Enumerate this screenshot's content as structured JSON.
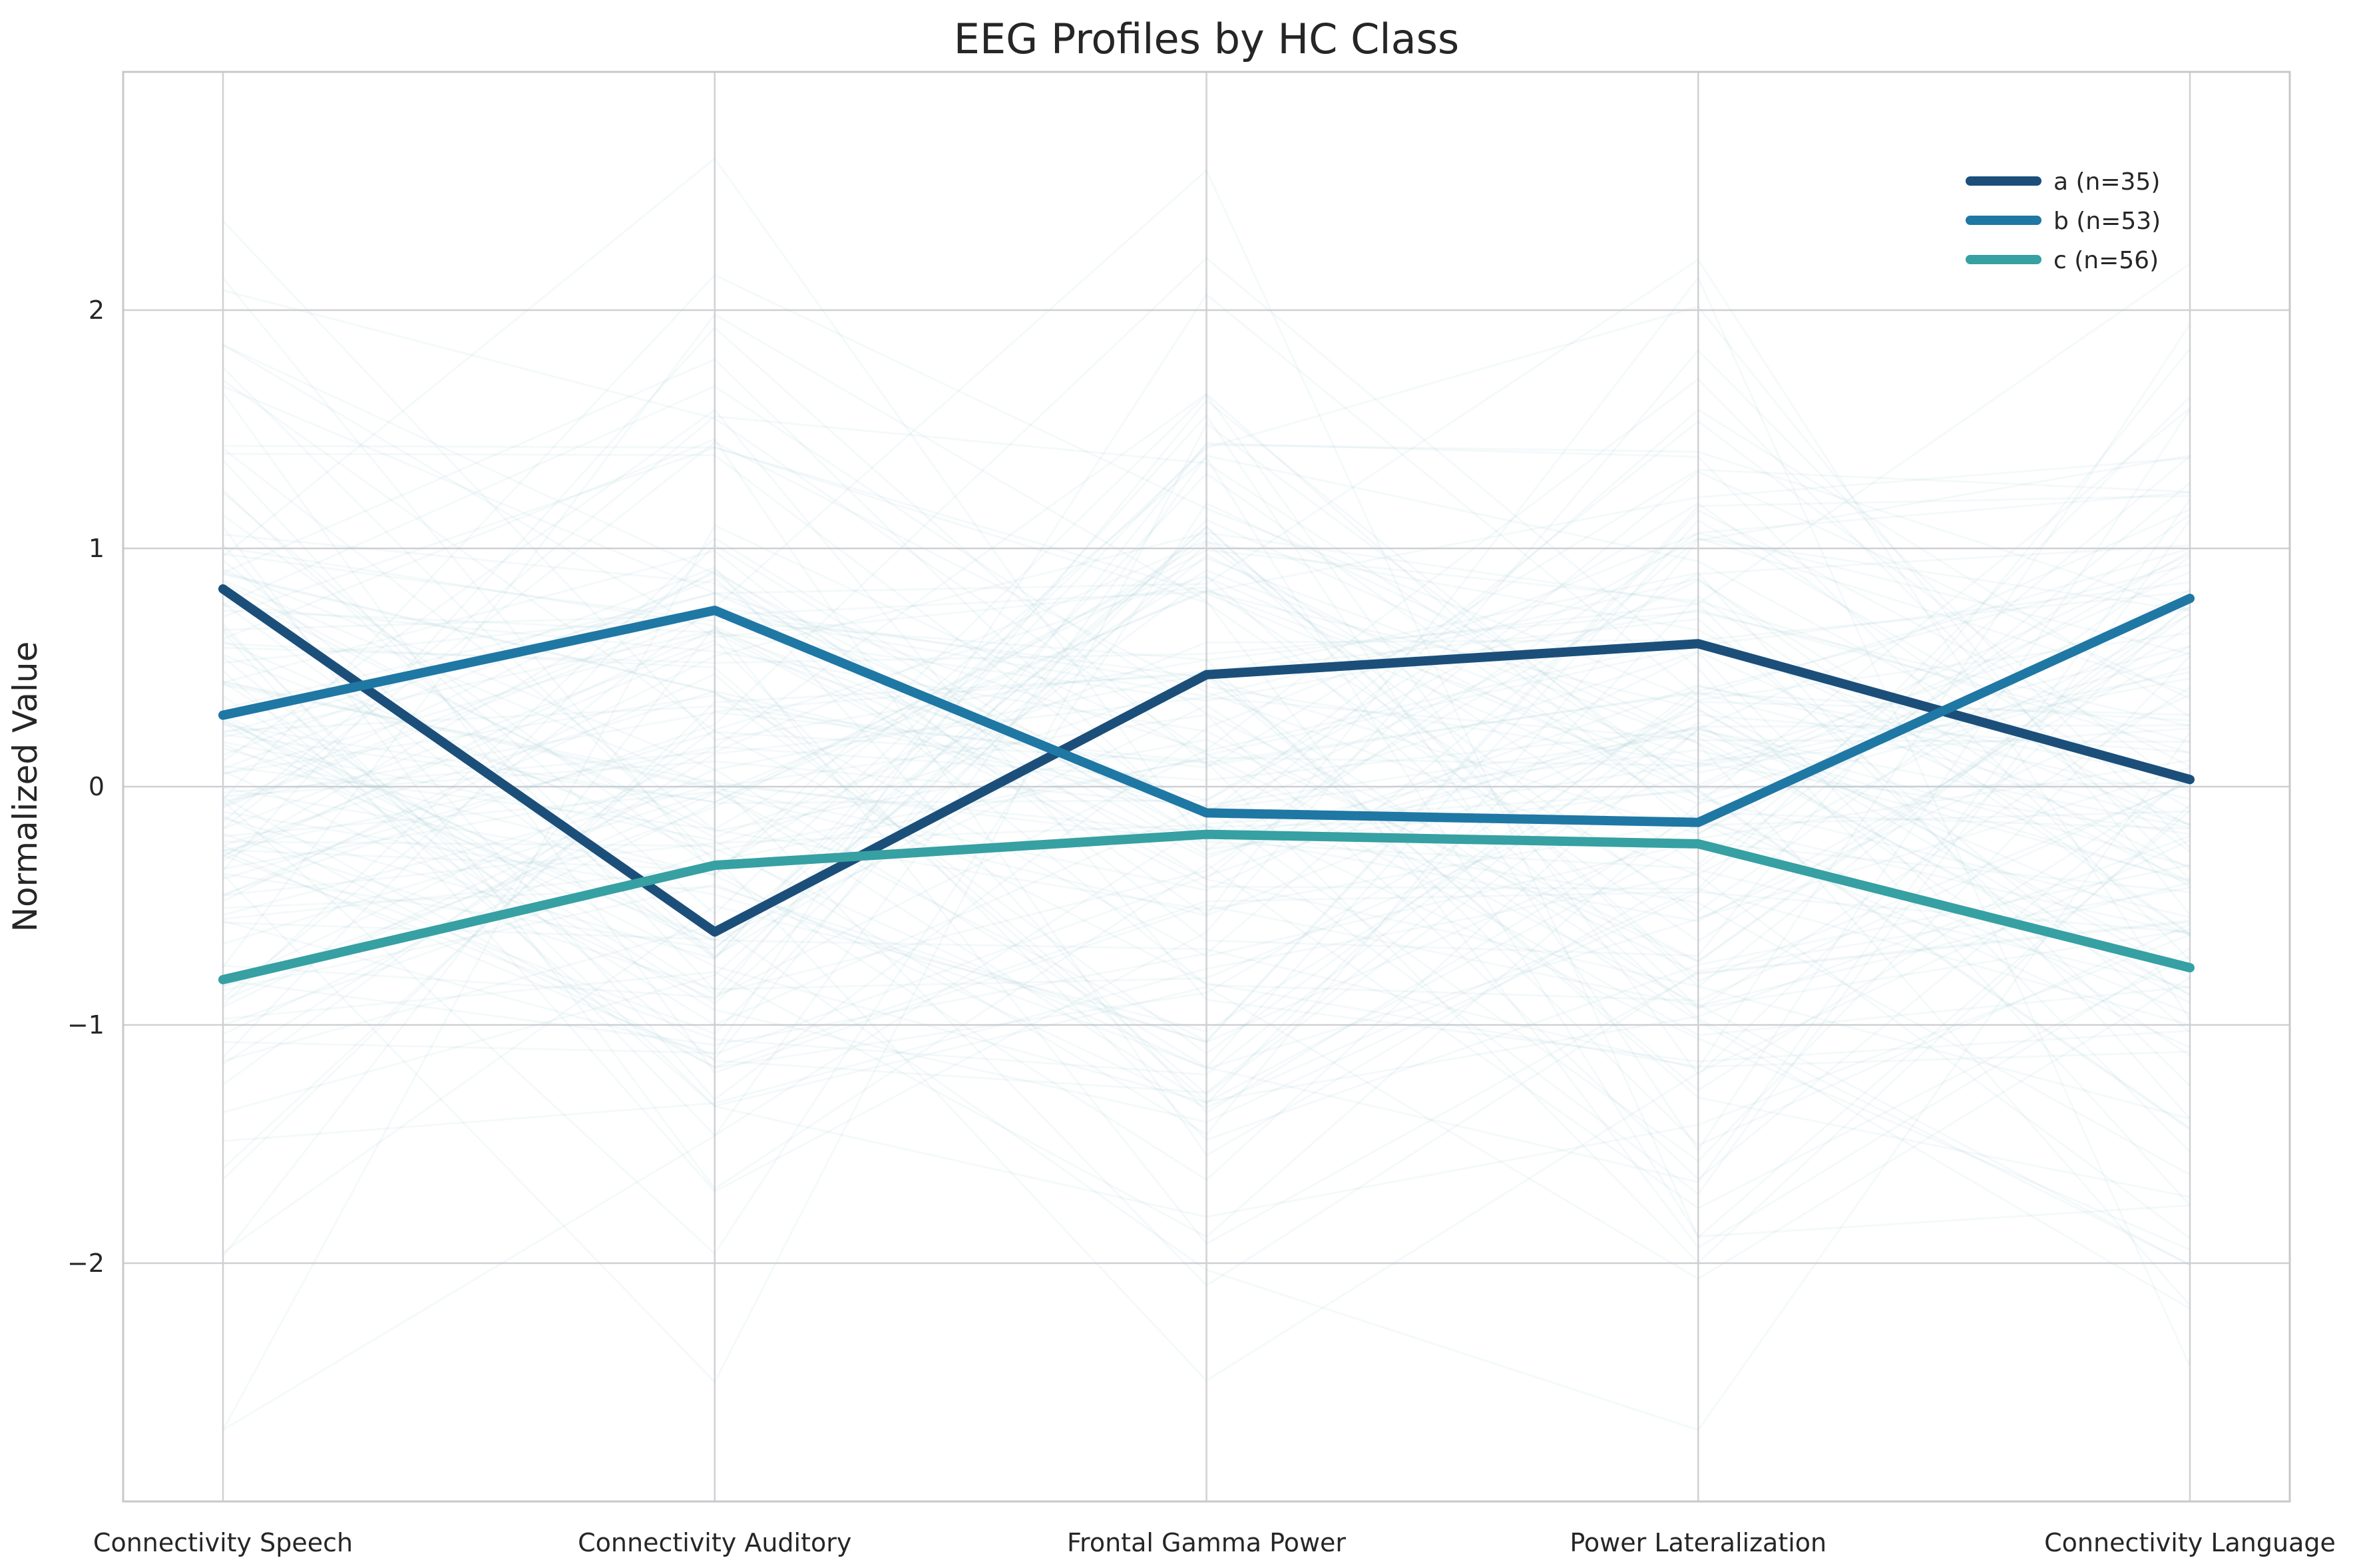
{
  "chart_data": {
    "type": "line",
    "title": "EEG Profiles by HC Class",
    "xlabel": "",
    "ylabel": "Normalized Value",
    "categories": [
      "Connectivity Speech",
      "Connectivity Auditory",
      "Frontal Gamma Power",
      "Power Lateralization",
      "Connectivity Language"
    ],
    "ylim": [
      -3.0,
      3.0
    ],
    "yticks": [
      -2,
      -1,
      0,
      1,
      2
    ],
    "ytick_labels": [
      "−2",
      "−1",
      "0",
      "1",
      "2"
    ],
    "grid": true,
    "legend_position": "top-right",
    "series": [
      {
        "name": "a (n=35)",
        "color": "#1b4f7a",
        "values": [
          0.83,
          -0.61,
          0.47,
          0.6,
          0.03
        ]
      },
      {
        "name": "b (n=53)",
        "color": "#1f77a4",
        "values": [
          0.3,
          0.74,
          -0.11,
          -0.15,
          0.79
        ]
      },
      {
        "name": "c (n=56)",
        "color": "#36a0a3",
        "values": [
          -0.81,
          -0.33,
          -0.2,
          -0.24,
          -0.76
        ]
      }
    ],
    "background_color": "#a7ccd6"
  }
}
